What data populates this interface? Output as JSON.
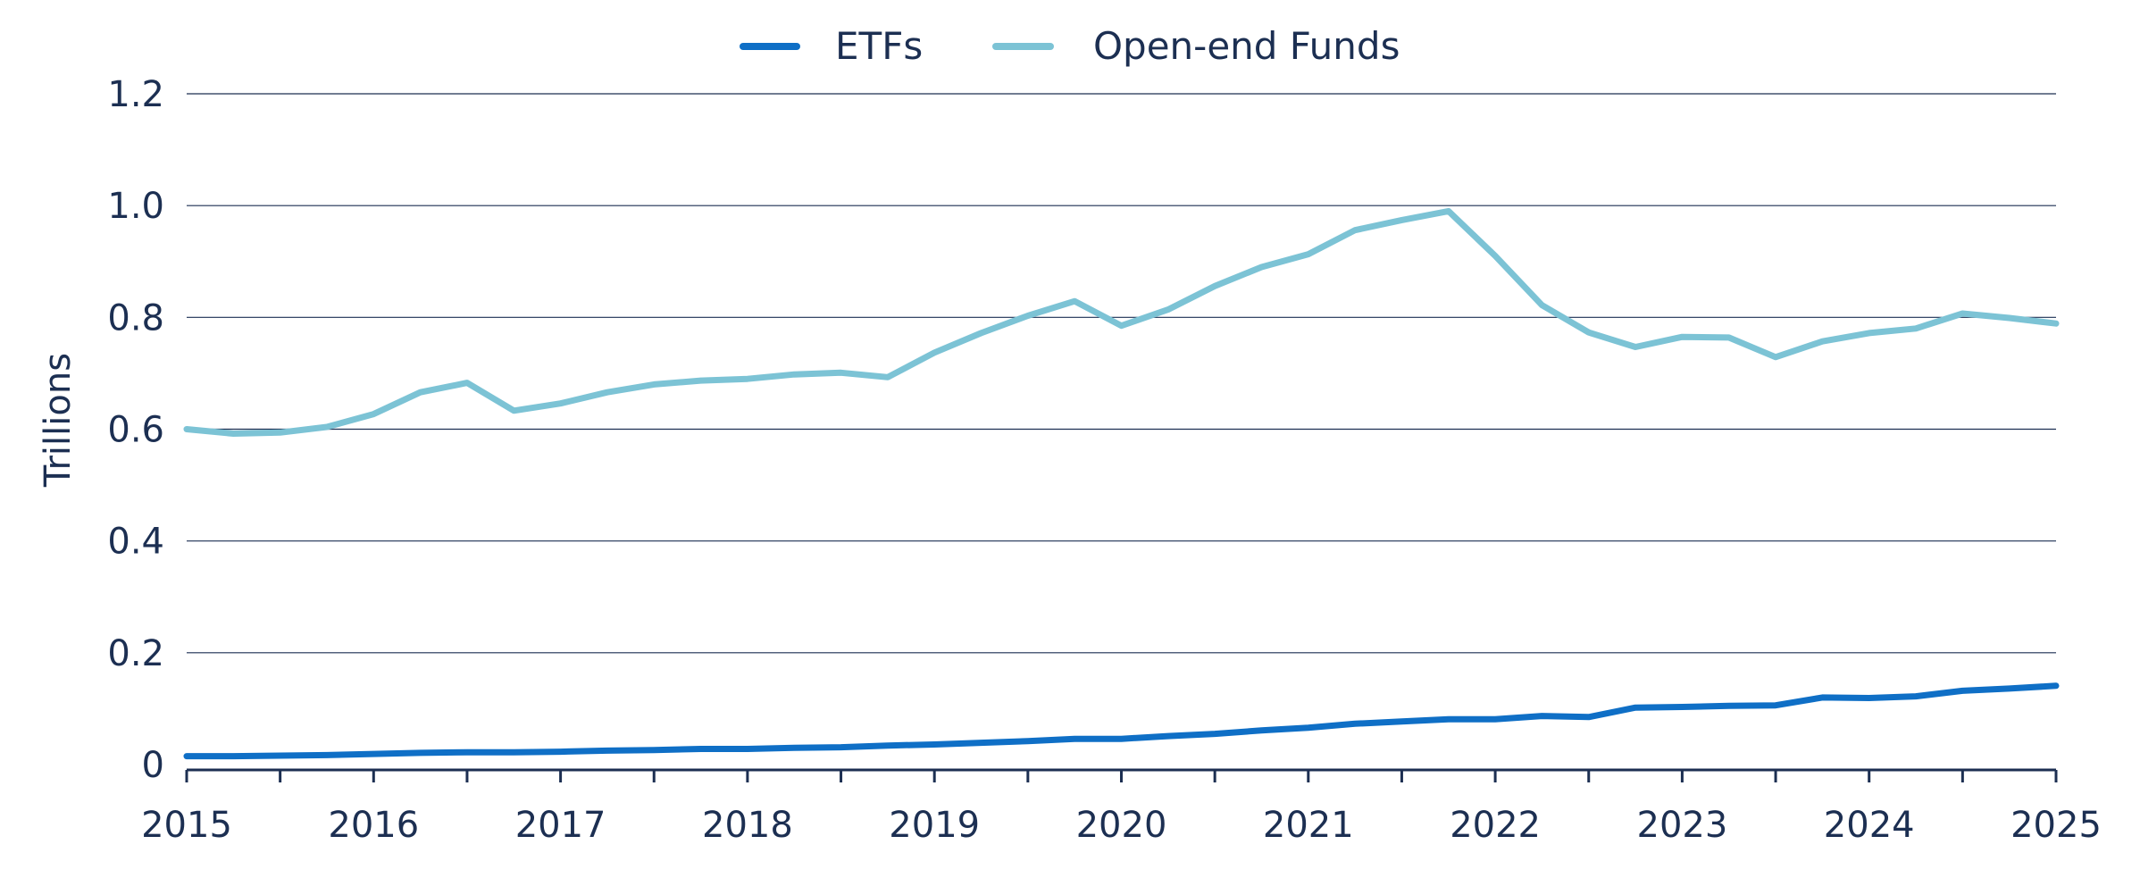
{
  "chart_data": {
    "type": "line",
    "title": "",
    "xlabel": "",
    "ylabel": "Trillions",
    "x_tick_labels": [
      "2015",
      "2016",
      "2017",
      "2018",
      "2019",
      "2020",
      "2021",
      "2022",
      "2023",
      "2024",
      "2025"
    ],
    "y_tick_labels": [
      "0",
      "0.2",
      "0.4",
      "0.6",
      "0.8",
      "1.0",
      "1.2"
    ],
    "ylim": [
      0,
      1.2
    ],
    "xlim": [
      2015,
      2025
    ],
    "grid": "horizontal",
    "legend_position": "top-center",
    "x": [
      2015.0,
      2015.25,
      2015.5,
      2015.75,
      2016.0,
      2016.25,
      2016.5,
      2016.75,
      2017.0,
      2017.25,
      2017.5,
      2017.75,
      2018.0,
      2018.25,
      2018.5,
      2018.75,
      2019.0,
      2019.25,
      2019.5,
      2019.75,
      2020.0,
      2020.25,
      2020.5,
      2020.75,
      2021.0,
      2021.25,
      2021.5,
      2021.75,
      2022.0,
      2022.25,
      2022.5,
      2022.75,
      2023.0,
      2023.25,
      2023.5,
      2023.75,
      2024.0,
      2024.25,
      2024.5,
      2024.75,
      2025.0
    ],
    "series": [
      {
        "name": "ETFs",
        "color": "#0f6fc6",
        "values": [
          0.015,
          0.015,
          0.016,
          0.017,
          0.019,
          0.021,
          0.022,
          0.022,
          0.023,
          0.025,
          0.026,
          0.028,
          0.028,
          0.03,
          0.031,
          0.034,
          0.036,
          0.039,
          0.042,
          0.046,
          0.046,
          0.051,
          0.055,
          0.061,
          0.066,
          0.073,
          0.077,
          0.081,
          0.081,
          0.087,
          0.085,
          0.102,
          0.103,
          0.105,
          0.106,
          0.12,
          0.119,
          0.122,
          0.132,
          0.136,
          0.141
        ]
      },
      {
        "name": "Open-end Funds",
        "color": "#7cc3d5",
        "values": [
          0.6,
          0.592,
          0.594,
          0.604,
          0.627,
          0.666,
          0.683,
          0.633,
          0.646,
          0.666,
          0.68,
          0.687,
          0.69,
          0.698,
          0.701,
          0.693,
          0.737,
          0.772,
          0.803,
          0.829,
          0.785,
          0.814,
          0.856,
          0.89,
          0.913,
          0.956,
          0.974,
          0.99,
          0.91,
          0.822,
          0.773,
          0.747,
          0.765,
          0.764,
          0.729,
          0.757,
          0.772,
          0.78,
          0.807,
          0.799,
          0.789
        ]
      }
    ]
  }
}
